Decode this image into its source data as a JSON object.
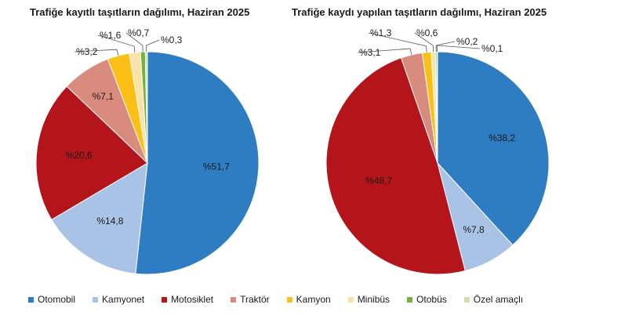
{
  "colors": {
    "Otomobil": "#2e7cc2",
    "Kamyonet": "#a9c3e6",
    "Motosiklet": "#b3151b",
    "Traktör": "#d98b7e",
    "Kamyon": "#fbbf16",
    "Minibüs": "#fbe2a6",
    "Otobüs": "#71b33c",
    "Özel amaçlı": "#cfe0a8"
  },
  "legend": [
    "Otomobil",
    "Kamyonet",
    "Motosiklet",
    "Traktör",
    "Kamyon",
    "Minibüs",
    "Otobüs",
    "Özel amaçlı"
  ],
  "chart_data": [
    {
      "type": "pie",
      "title": "Trafiğe kayıtlı taşıtların dağılımı, Haziran 2025",
      "slices": [
        {
          "name": "Otomobil",
          "value": 51.7,
          "label": "%51,7"
        },
        {
          "name": "Kamyonet",
          "value": 14.8,
          "label": "%14,8"
        },
        {
          "name": "Motosiklet",
          "value": 20.6,
          "label": "%20,6"
        },
        {
          "name": "Traktör",
          "value": 7.1,
          "label": "%7,1"
        },
        {
          "name": "Kamyon",
          "value": 3.2,
          "label": "%3,2"
        },
        {
          "name": "Minibüs",
          "value": 1.6,
          "label": "%1,6"
        },
        {
          "name": "Otobüs",
          "value": 0.7,
          "label": "%0,7"
        },
        {
          "name": "Özel amaçlı",
          "value": 0.3,
          "label": "%0,3"
        }
      ]
    },
    {
      "type": "pie",
      "title": "Trafiğe kaydı yapılan taşıtların dağılımı, Haziran 2025",
      "slices": [
        {
          "name": "Otomobil",
          "value": 38.2,
          "label": "%38,2"
        },
        {
          "name": "Kamyonet",
          "value": 7.8,
          "label": "%7,8"
        },
        {
          "name": "Motosiklet",
          "value": 48.7,
          "label": "%48,7"
        },
        {
          "name": "Traktör",
          "value": 3.1,
          "label": "%3,1"
        },
        {
          "name": "Kamyon",
          "value": 1.3,
          "label": "%1,3"
        },
        {
          "name": "Minibüs",
          "value": 0.6,
          "label": "%0,6"
        },
        {
          "name": "Otobüs",
          "value": 0.2,
          "label": "%0,2"
        },
        {
          "name": "Özel amaçlı",
          "value": 0.1,
          "label": "%0,1"
        }
      ]
    }
  ]
}
